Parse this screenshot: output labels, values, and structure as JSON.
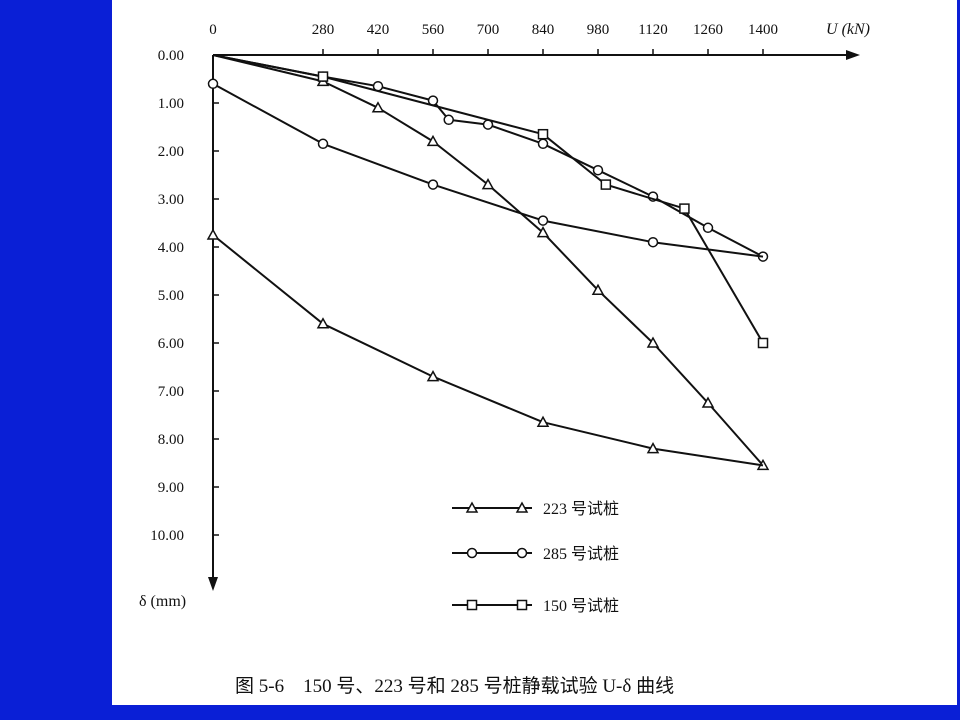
{
  "colors": {
    "background": "#0a1fd6",
    "panel": "#ffffff",
    "ink": "#111111"
  },
  "caption": "图 5-6　150 号、223 号和 285 号桩静载试验 U-δ 曲线",
  "chart_data": {
    "type": "line",
    "x_axis": {
      "label": "U (kN)",
      "position": "top",
      "ticks": [
        0,
        280,
        420,
        560,
        700,
        840,
        980,
        1120,
        1260,
        1400
      ],
      "range": [
        0,
        1400
      ]
    },
    "y_axis": {
      "label": "δ (mm)",
      "inverted": true,
      "ticks": [
        "0.00",
        "1.00",
        "2.00",
        "3.00",
        "4.00",
        "5.00",
        "6.00",
        "7.00",
        "8.00",
        "9.00",
        "10.00"
      ],
      "range": [
        0,
        10
      ]
    },
    "grid": false,
    "legend_position": "bottom-right",
    "series": [
      {
        "name": "223 号试桩",
        "marker": "triangle",
        "loading": {
          "x": [
            0,
            280,
            420,
            560,
            700,
            840,
            980,
            1120,
            1260,
            1400
          ],
          "y": [
            0.0,
            0.55,
            1.1,
            1.8,
            2.7,
            3.7,
            4.9,
            6.0,
            7.25,
            8.55
          ]
        },
        "unloading": {
          "x": [
            1400,
            1120,
            840,
            560,
            280,
            0
          ],
          "y": [
            8.55,
            8.2,
            7.65,
            6.7,
            5.6,
            3.75
          ]
        }
      },
      {
        "name": "285 号试桩",
        "marker": "circle",
        "loading": {
          "x": [
            0,
            280,
            420,
            560,
            600,
            700,
            840,
            980,
            1120,
            1260,
            1400
          ],
          "y": [
            0.0,
            0.45,
            0.65,
            0.95,
            1.35,
            1.45,
            1.85,
            2.4,
            2.95,
            3.6,
            4.2
          ]
        },
        "unloading": {
          "x": [
            1400,
            1120,
            840,
            560,
            280,
            0
          ],
          "y": [
            4.2,
            3.9,
            3.45,
            2.7,
            1.85,
            0.6
          ]
        }
      },
      {
        "name": "150 号试桩",
        "marker": "square",
        "loading": {
          "x": [
            0,
            280,
            840,
            1000,
            1200,
            1400
          ],
          "y": [
            0.0,
            0.45,
            1.65,
            2.7,
            3.2,
            6.0
          ]
        },
        "unloading": null
      }
    ]
  }
}
